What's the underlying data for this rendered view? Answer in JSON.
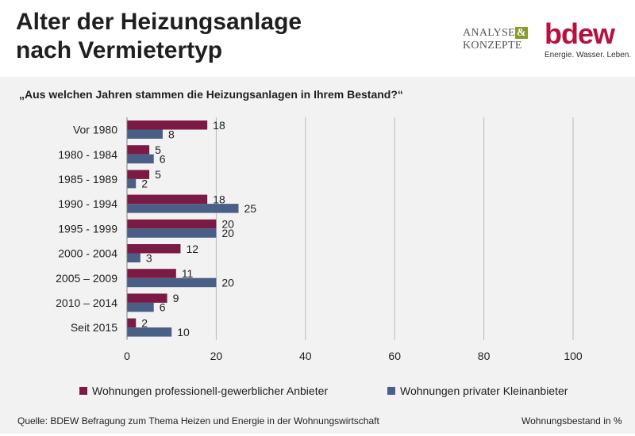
{
  "header": {
    "title": "Alter der Heizungsanlage\nnach Vermietertyp",
    "logo_analyse_line1": "ANALYSE",
    "logo_analyse_amp": "&",
    "logo_analyse_line2": "KONZEPTE",
    "logo_bdew": "bdew",
    "logo_bdew_slogan": "Energie. Wasser. Leben."
  },
  "question": "„Aus welchen Jahren stammen die Heizungsanlagen in Ihrem Bestand?“",
  "footer": {
    "source": "Quelle: BDEW Befragung zum Thema Heizen und Energie in der Wohnungswirtschaft",
    "unit": "Wohnungsbestand in %"
  },
  "colors": {
    "series1": "#7b1a45",
    "series2": "#4a5f85",
    "grid": "#b8b8b8"
  },
  "chart_data": {
    "type": "bar",
    "orientation": "horizontal",
    "categories": [
      "Vor 1980",
      "1980 - 1984",
      "1985 - 1989",
      "1990 - 1994",
      "1995 - 1999",
      "2000 - 2004",
      "2005 – 2009",
      "2010 – 2014",
      "Seit 2015"
    ],
    "series": [
      {
        "name": "Wohnungen professionell-gewerblicher Anbieter",
        "values": [
          18,
          5,
          5,
          18,
          20,
          12,
          11,
          9,
          2
        ]
      },
      {
        "name": "Wohnungen privater Kleinanbieter",
        "values": [
          8,
          6,
          2,
          25,
          20,
          3,
          20,
          6,
          10
        ]
      }
    ],
    "xlim": [
      0,
      100
    ],
    "xticks": [
      0,
      20,
      40,
      60,
      80,
      100
    ],
    "grid": true,
    "legend": "bottom"
  }
}
